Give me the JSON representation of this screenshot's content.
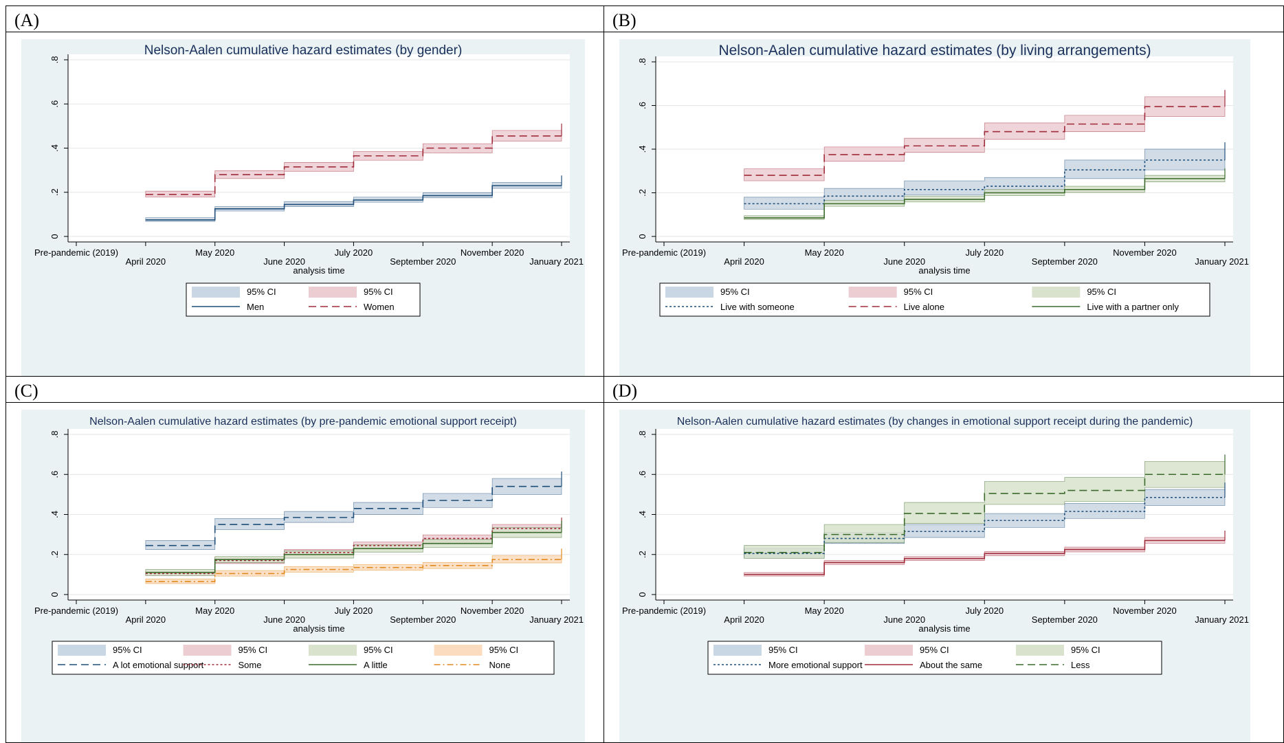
{
  "panels": [
    {
      "label": "(A)",
      "chart_data": {
        "type": "line",
        "title": "Nelson-Aalen cumulative hazard estimates (by gender)",
        "xlabel": "analysis time",
        "ylabel": "",
        "ylim": [
          0,
          0.8
        ],
        "yticks": [
          "0",
          ".2",
          ".4",
          ".6",
          ".8"
        ],
        "x_tick_labels": [
          "Pre-pandemic (2019)",
          "April 2020",
          "May 2020",
          "June 2020",
          "July 2020",
          "September 2020",
          "November 2020",
          "January 2021"
        ],
        "legend_position": "bottom",
        "legend_columns": 2,
        "legend": [
          "95% CI",
          "95% CI",
          "Men",
          "Women"
        ],
        "series": [
          {
            "name": "Men",
            "color": "#1f4e79",
            "dash": "solid",
            "ci_color": "#c9d6e3",
            "values": [
              0.075,
              0.125,
              0.145,
              0.165,
              0.185,
              0.23,
              0.23
            ],
            "lower": [
              0.068,
              0.115,
              0.135,
              0.155,
              0.175,
              0.218,
              0.218
            ],
            "upper": [
              0.085,
              0.135,
              0.158,
              0.178,
              0.198,
              0.245,
              0.245
            ]
          },
          {
            "name": "Women",
            "color": "#a02b3a",
            "dash": "dash",
            "ci_color": "#eccdd2",
            "values": [
              0.19,
              0.28,
              0.315,
              0.365,
              0.4,
              0.455,
              0.455
            ],
            "lower": [
              0.178,
              0.262,
              0.295,
              0.345,
              0.378,
              0.432,
              0.432
            ],
            "upper": [
              0.205,
              0.298,
              0.335,
              0.385,
              0.42,
              0.48,
              0.48
            ]
          }
        ]
      }
    },
    {
      "label": "(B)",
      "chart_data": {
        "type": "line",
        "title": "Nelson-Aalen cumulative hazard estimates (by living arrangements)",
        "xlabel": "analysis time",
        "ylabel": "",
        "ylim": [
          0,
          0.8
        ],
        "yticks": [
          "0",
          ".2",
          ".4",
          ".6",
          ".8"
        ],
        "x_tick_labels": [
          "Pre-pandemic (2019)",
          "April 2020",
          "May 2020",
          "June 2020",
          "July 2020",
          "September 2020",
          "November 2020",
          "January 2021"
        ],
        "legend_position": "bottom",
        "legend_columns": 3,
        "legend": [
          "95% CI",
          "95% CI",
          "95% CI",
          "Live with someone",
          "Live alone",
          "Live with a partner only"
        ],
        "series": [
          {
            "name": "Live with someone",
            "color": "#1f4e79",
            "dash": "dot",
            "ci_color": "#c9d6e3",
            "values": [
              0.15,
              0.185,
              0.215,
              0.23,
              0.305,
              0.35,
              0.35
            ],
            "lower": [
              0.125,
              0.16,
              0.19,
              0.205,
              0.265,
              0.305,
              0.305
            ],
            "upper": [
              0.18,
              0.22,
              0.255,
              0.27,
              0.35,
              0.4,
              0.4
            ]
          },
          {
            "name": "Live alone",
            "color": "#a02b3a",
            "dash": "dash",
            "ci_color": "#eccdd2",
            "values": [
              0.28,
              0.375,
              0.415,
              0.48,
              0.515,
              0.595,
              0.595
            ],
            "lower": [
              0.255,
              0.345,
              0.385,
              0.445,
              0.48,
              0.55,
              0.55
            ],
            "upper": [
              0.31,
              0.41,
              0.45,
              0.52,
              0.555,
              0.64,
              0.64
            ]
          },
          {
            "name": "Live with a partner only",
            "color": "#3a6b2a",
            "dash": "solid",
            "ci_color": "#d8e2cc",
            "values": [
              0.085,
              0.15,
              0.17,
              0.2,
              0.215,
              0.265,
              0.265
            ],
            "lower": [
              0.078,
              0.138,
              0.158,
              0.187,
              0.202,
              0.25,
              0.25
            ],
            "upper": [
              0.095,
              0.165,
              0.185,
              0.215,
              0.23,
              0.28,
              0.28
            ]
          }
        ]
      }
    },
    {
      "label": "(C)",
      "chart_data": {
        "type": "line",
        "title": "Nelson-Aalen cumulative hazard estimates (by pre-pandemic emotional support receipt)",
        "xlabel": "analysis time",
        "ylabel": "",
        "ylim": [
          0,
          0.8
        ],
        "yticks": [
          "0",
          ".2",
          ".4",
          ".6",
          ".8"
        ],
        "x_tick_labels": [
          "Pre-pandemic (2019)",
          "April 2020",
          "May 2020",
          "June 2020",
          "July 2020",
          "September 2020",
          "November 2020",
          "January 2021"
        ],
        "legend_position": "bottom",
        "legend_columns": 4,
        "legend": [
          "95% CI",
          "95% CI",
          "95% CI",
          "95% CI",
          "A lot emotional support",
          "Some",
          "A little",
          "None"
        ],
        "series": [
          {
            "name": "A lot emotional support",
            "color": "#1f4e79",
            "dash": "dash",
            "ci_color": "#c9d6e3",
            "values": [
              0.245,
              0.35,
              0.385,
              0.43,
              0.47,
              0.54,
              0.54
            ],
            "lower": [
              0.225,
              0.325,
              0.36,
              0.4,
              0.435,
              0.5,
              0.5
            ],
            "upper": [
              0.27,
              0.38,
              0.415,
              0.46,
              0.505,
              0.58,
              0.58
            ]
          },
          {
            "name": "Some",
            "color": "#a02b3a",
            "dash": "dot",
            "ci_color": "#eccdd2",
            "values": [
              0.105,
              0.17,
              0.21,
              0.245,
              0.28,
              0.33,
              0.33
            ],
            "lower": [
              0.095,
              0.155,
              0.195,
              0.228,
              0.262,
              0.31,
              0.31
            ],
            "upper": [
              0.115,
              0.185,
              0.225,
              0.262,
              0.298,
              0.35,
              0.35
            ]
          },
          {
            "name": "A little",
            "color": "#3a6b2a",
            "dash": "solid",
            "ci_color": "#d8e2cc",
            "values": [
              0.11,
              0.175,
              0.2,
              0.23,
              0.255,
              0.31,
              0.31
            ],
            "lower": [
              0.095,
              0.16,
              0.182,
              0.212,
              0.235,
              0.285,
              0.285
            ],
            "upper": [
              0.125,
              0.19,
              0.218,
              0.248,
              0.275,
              0.335,
              0.335
            ]
          },
          {
            "name": "None",
            "color": "#e08a1e",
            "dash": "dashdot",
            "ci_color": "#fbdcbf",
            "values": [
              0.065,
              0.105,
              0.125,
              0.135,
              0.145,
              0.175,
              0.175
            ],
            "lower": [
              0.055,
              0.092,
              0.112,
              0.122,
              0.13,
              0.158,
              0.158
            ],
            "upper": [
              0.078,
              0.12,
              0.14,
              0.15,
              0.16,
              0.195,
              0.195
            ]
          }
        ]
      }
    },
    {
      "label": "(D)",
      "chart_data": {
        "type": "line",
        "title": "Nelson-Aalen cumulative hazard estimates (by changes in emotional support receipt during the pandemic)",
        "xlabel": "analysis time",
        "ylabel": "",
        "ylim": [
          0,
          0.8
        ],
        "yticks": [
          "0",
          ".2",
          ".4",
          ".6",
          ".8"
        ],
        "x_tick_labels": [
          "Pre-pandemic (2019)",
          "April 2020",
          "May 2020",
          "June 2020",
          "July 2020",
          "September 2020",
          "November 2020",
          "January 2021"
        ],
        "legend_position": "bottom",
        "legend_columns": 3,
        "legend": [
          "95% CI",
          "95% CI",
          "95% CI",
          "More emotional support",
          "About the same",
          "Less"
        ],
        "series": [
          {
            "name": "More emotional support",
            "color": "#1f4e79",
            "dash": "dot",
            "ci_color": "#c9d6e3",
            "values": [
              0.205,
              0.28,
              0.315,
              0.37,
              0.415,
              0.485,
              0.485
            ],
            "lower": [
              0.185,
              0.255,
              0.285,
              0.335,
              0.38,
              0.445,
              0.445
            ],
            "upper": [
              0.23,
              0.31,
              0.35,
              0.405,
              0.455,
              0.525,
              0.525
            ]
          },
          {
            "name": "About the same",
            "color": "#a02b3a",
            "dash": "solid",
            "ci_color": "#eccdd2",
            "values": [
              0.1,
              0.16,
              0.18,
              0.205,
              0.225,
              0.27,
              0.27
            ],
            "lower": [
              0.092,
              0.15,
              0.17,
              0.194,
              0.213,
              0.256,
              0.256
            ],
            "upper": [
              0.11,
              0.17,
              0.19,
              0.215,
              0.237,
              0.285,
              0.285
            ]
          },
          {
            "name": "Less",
            "color": "#3a6b2a",
            "dash": "dash",
            "ci_color": "#d8e2cc",
            "values": [
              0.21,
              0.3,
              0.405,
              0.505,
              0.52,
              0.6,
              0.6
            ],
            "lower": [
              0.18,
              0.26,
              0.355,
              0.45,
              0.465,
              0.535,
              0.535
            ],
            "upper": [
              0.245,
              0.35,
              0.46,
              0.565,
              0.585,
              0.665,
              0.665
            ]
          }
        ]
      }
    }
  ]
}
